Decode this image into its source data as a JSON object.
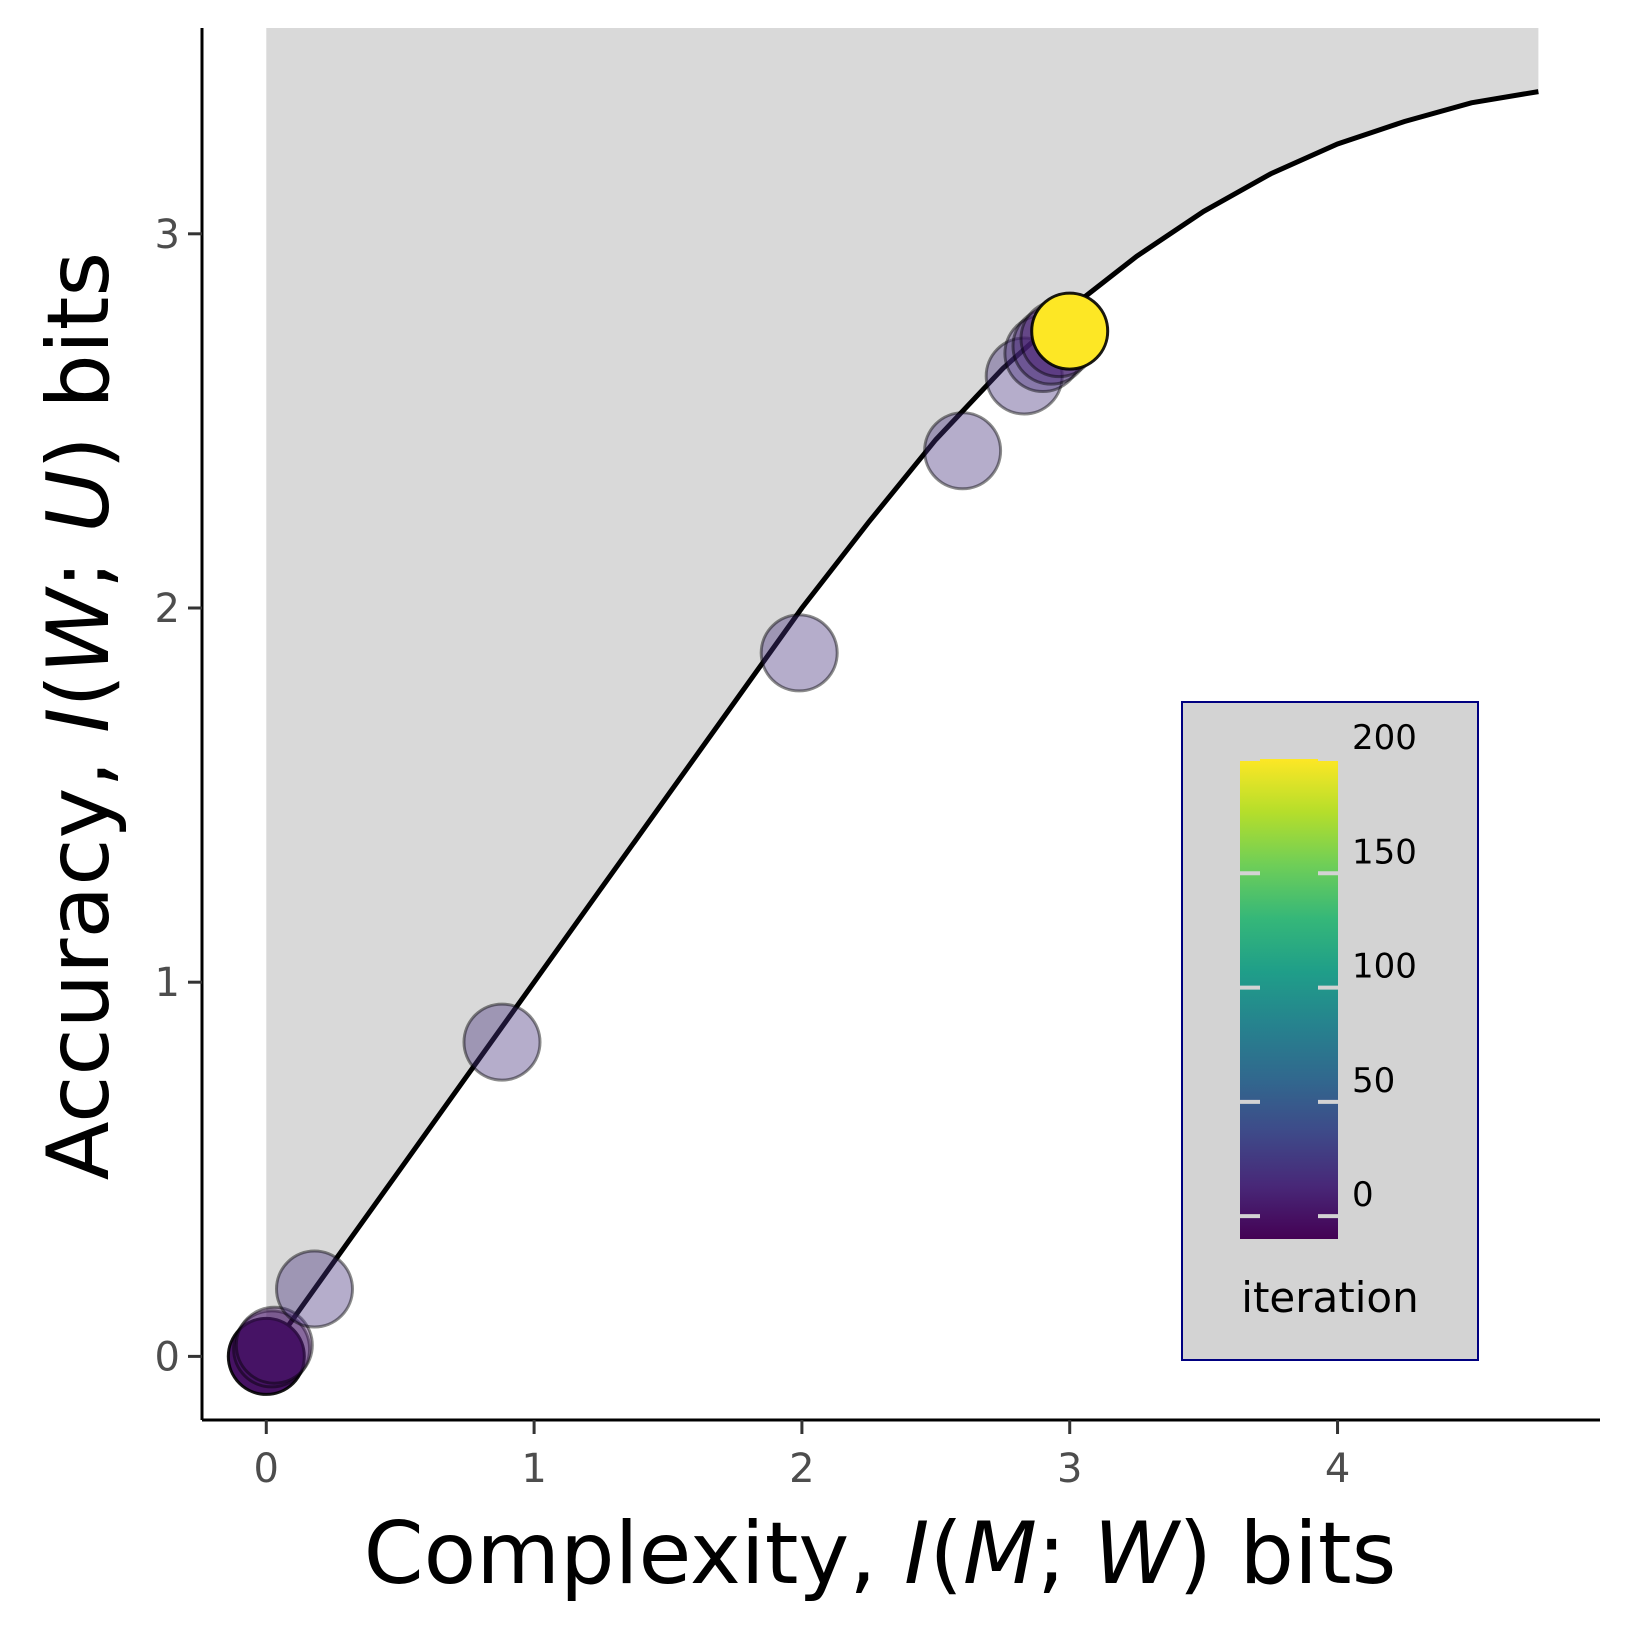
{
  "chart_data": {
    "type": "scatter",
    "xlabel": {
      "prefix": "Complexity, ",
      "math": [
        "I",
        "(",
        "M",
        ";",
        " ",
        "W",
        ")"
      ],
      "suffix": " bits"
    },
    "ylabel": {
      "prefix": "Accuracy, ",
      "math": [
        "I",
        "(",
        "W",
        ";",
        " ",
        "U",
        ")"
      ],
      "suffix": " bits"
    },
    "xlim": [
      -0.24,
      4.98
    ],
    "ylim": [
      -0.17,
      3.55
    ],
    "x_ticks": [
      0,
      1,
      2,
      3,
      4
    ],
    "y_ticks": [
      0,
      1,
      2,
      3
    ],
    "x_tick_labels": [
      "0",
      "1",
      "2",
      "3",
      "4"
    ],
    "y_tick_labels": [
      "0",
      "1",
      "2",
      "3"
    ],
    "grid": false,
    "feasible_region_color": "#d9d9d9",
    "bound_curve": {
      "color": "#000000",
      "x": [
        0.0,
        0.25,
        0.5,
        0.75,
        1.0,
        1.25,
        1.5,
        1.75,
        2.0,
        2.25,
        2.5,
        2.75,
        3.0,
        3.25,
        3.5,
        3.75,
        4.0,
        4.25,
        4.5,
        4.75
      ],
      "y": [
        0.0,
        0.25,
        0.5,
        0.75,
        1.0,
        1.25,
        1.5,
        1.75,
        2.0,
        2.23,
        2.45,
        2.64,
        2.8,
        2.94,
        3.06,
        3.16,
        3.24,
        3.3,
        3.35,
        3.38
      ]
    },
    "series": [
      {
        "points": [
          {
            "x": 0.0,
            "y": 0.0,
            "iteration": 0
          },
          {
            "x": 0.02,
            "y": 0.02,
            "iteration": 3
          },
          {
            "x": 0.03,
            "y": 0.03,
            "iteration": 2
          },
          {
            "x": 0.18,
            "y": 0.18,
            "iteration": 20
          },
          {
            "x": 0.88,
            "y": 0.84,
            "iteration": 20
          },
          {
            "x": 1.99,
            "y": 1.88,
            "iteration": 20
          },
          {
            "x": 2.6,
            "y": 2.42,
            "iteration": 20
          },
          {
            "x": 2.83,
            "y": 2.62,
            "iteration": 20
          },
          {
            "x": 2.9,
            "y": 2.68,
            "iteration": 15
          },
          {
            "x": 2.93,
            "y": 2.7,
            "iteration": 10
          },
          {
            "x": 2.96,
            "y": 2.72,
            "iteration": 5
          },
          {
            "x": 3.0,
            "y": 2.74,
            "iteration": 200
          }
        ]
      }
    ],
    "colorbar": {
      "title": "iteration",
      "min": -10,
      "max": 200,
      "ticks": [
        0,
        50,
        100,
        150,
        200
      ],
      "tick_labels": [
        "0",
        "50",
        "100",
        "150",
        "200"
      ],
      "colormap": [
        "#440154",
        "#482878",
        "#3e4a89",
        "#31688e",
        "#26828e",
        "#1f9e89",
        "#35b779",
        "#6ece58",
        "#b5de2b",
        "#fde725"
      ],
      "placement": "bottom-right",
      "background": "#d3d3d3",
      "border_color": "#000080"
    }
  }
}
